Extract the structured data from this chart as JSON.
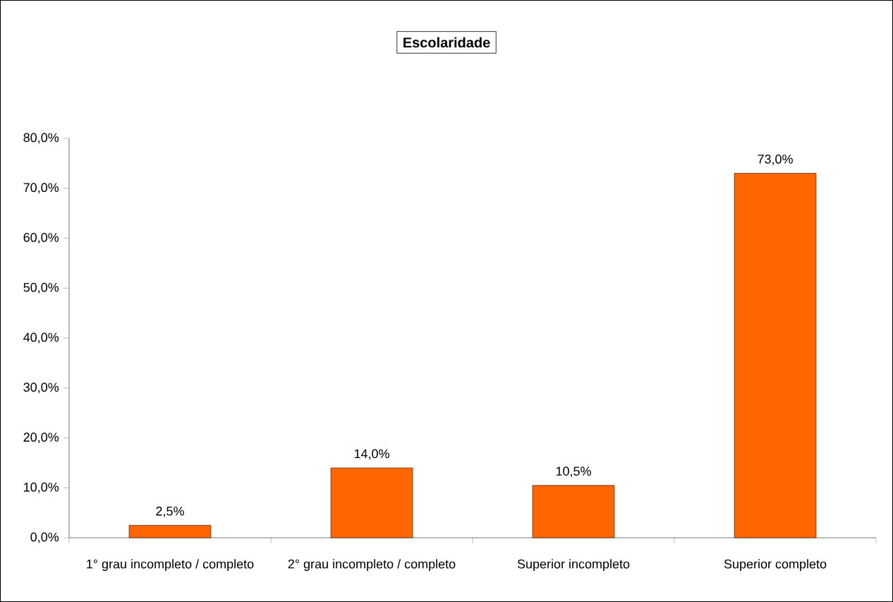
{
  "chart_data": {
    "type": "bar",
    "title": "Escolaridade",
    "categories": [
      "1° grau incompleto / completo",
      "2° grau incompleto / completo",
      "Superior incompleto",
      "Superior completo"
    ],
    "values": [
      2.5,
      14.0,
      10.5,
      73.0
    ],
    "value_labels": [
      "2,5%",
      "14,0%",
      "10,5%",
      "73,0%"
    ],
    "color": "#ff6600",
    "ylim": [
      0,
      80
    ],
    "yticks": [
      {
        "value": 0,
        "label": "0,0%"
      },
      {
        "value": 10,
        "label": "10,0%"
      },
      {
        "value": 20,
        "label": "20,0%"
      },
      {
        "value": 30,
        "label": "30,0%"
      },
      {
        "value": 40,
        "label": "40,0%"
      },
      {
        "value": 50,
        "label": "50,0%"
      },
      {
        "value": 60,
        "label": "60,0%"
      },
      {
        "value": 70,
        "label": "70,0%"
      },
      {
        "value": 80,
        "label": "80,0%"
      }
    ]
  }
}
